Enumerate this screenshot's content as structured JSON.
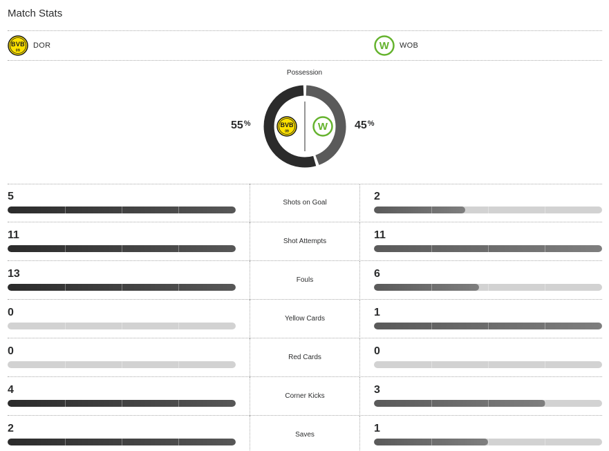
{
  "page": {
    "title": "Match Stats"
  },
  "teams": {
    "home": {
      "abbr": "DOR",
      "logo_icon": "bvb-crest-icon",
      "color": "#fde100"
    },
    "away": {
      "abbr": "WOB",
      "logo_icon": "wolfsburg-crest-icon",
      "color": "#65b32e"
    }
  },
  "possession": {
    "label": "Possession",
    "home_value": "55",
    "away_value": "45",
    "unit": "%",
    "home_fraction": 0.55,
    "away_fraction": 0.45
  },
  "stats": [
    {
      "label": "Shots on Goal",
      "home": "5",
      "away": "2",
      "home_fill": 1.0,
      "away_fill": 0.4
    },
    {
      "label": "Shot Attempts",
      "home": "11",
      "away": "11",
      "home_fill": 1.0,
      "away_fill": 1.0
    },
    {
      "label": "Fouls",
      "home": "13",
      "away": "6",
      "home_fill": 1.0,
      "away_fill": 0.46
    },
    {
      "label": "Yellow Cards",
      "home": "0",
      "away": "1",
      "home_fill": 0.0,
      "away_fill": 1.0
    },
    {
      "label": "Red Cards",
      "home": "0",
      "away": "0",
      "home_fill": 0.0,
      "away_fill": 0.0
    },
    {
      "label": "Corner Kicks",
      "home": "4",
      "away": "3",
      "home_fill": 1.0,
      "away_fill": 0.75
    },
    {
      "label": "Saves",
      "home": "2",
      "away": "1",
      "home_fill": 1.0,
      "away_fill": 0.5
    }
  ]
}
